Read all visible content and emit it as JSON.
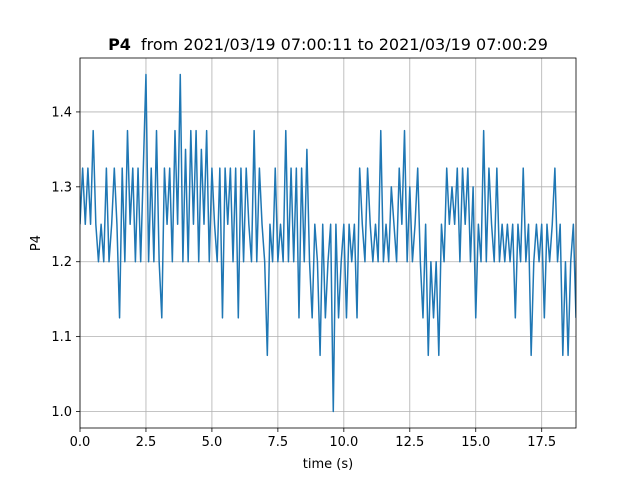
{
  "chart_data": {
    "type": "line",
    "title_variable": "P4",
    "title_range": "from 2021/03/19 07:00:11 to 2021/03/19 07:00:29",
    "xlabel": "time (s)",
    "ylabel": "P4",
    "xlim": [
      0,
      18.8
    ],
    "ylim": [
      0.978,
      1.472
    ],
    "xticks": [
      0.0,
      2.5,
      5.0,
      7.5,
      10.0,
      12.5,
      15.0,
      17.5
    ],
    "xtick_labels": [
      "0.0",
      "2.5",
      "5.0",
      "7.5",
      "10.0",
      "12.5",
      "15.0",
      "17.5"
    ],
    "yticks": [
      1.0,
      1.1,
      1.2,
      1.3,
      1.4
    ],
    "ytick_labels": [
      "1.0",
      "1.1",
      "1.2",
      "1.3",
      "1.4"
    ],
    "grid": true,
    "line_color": "#1f77b4",
    "series": [
      {
        "x": [
          0,
          0.1,
          0.2,
          0.3,
          0.4,
          0.5,
          0.6,
          0.7,
          0.8,
          0.9,
          1.0,
          1.1,
          1.2,
          1.3,
          1.4,
          1.5,
          1.6,
          1.7,
          1.8,
          1.9,
          2.0,
          2.1,
          2.2,
          2.3,
          2.4,
          2.5,
          2.6,
          2.7,
          2.8,
          2.9,
          3.0,
          3.1,
          3.2,
          3.3,
          3.4,
          3.5,
          3.6,
          3.7,
          3.8,
          3.9,
          4.0,
          4.1,
          4.2,
          4.3,
          4.4,
          4.5,
          4.6,
          4.7,
          4.8,
          4.9,
          5.0,
          5.1,
          5.2,
          5.3,
          5.4,
          5.5,
          5.6,
          5.7,
          5.8,
          5.9,
          6.0,
          6.1,
          6.2,
          6.3,
          6.4,
          6.5,
          6.6,
          6.7,
          6.8,
          6.9,
          7.0,
          7.1,
          7.2,
          7.3,
          7.4,
          7.5,
          7.6,
          7.7,
          7.8,
          7.9,
          8.0,
          8.1,
          8.2,
          8.3,
          8.4,
          8.5,
          8.6,
          8.7,
          8.8,
          8.9,
          9.0,
          9.1,
          9.2,
          9.3,
          9.4,
          9.5,
          9.6,
          9.7,
          9.8,
          9.9,
          10.0,
          10.1,
          10.2,
          10.3,
          10.4,
          10.5,
          10.6,
          10.7,
          10.8,
          10.9,
          11.0,
          11.1,
          11.2,
          11.3,
          11.4,
          11.5,
          11.6,
          11.7,
          11.8,
          11.9,
          12.0,
          12.1,
          12.2,
          12.3,
          12.4,
          12.5,
          12.6,
          12.7,
          12.8,
          12.9,
          13.0,
          13.1,
          13.2,
          13.3,
          13.4,
          13.5,
          13.6,
          13.7,
          13.8,
          13.9,
          14.0,
          14.1,
          14.2,
          14.3,
          14.4,
          14.5,
          14.6,
          14.7,
          14.8,
          14.9,
          15.0,
          15.1,
          15.2,
          15.3,
          15.4,
          15.5,
          15.6,
          15.7,
          15.8,
          15.9,
          16.0,
          16.1,
          16.2,
          16.3,
          16.4,
          16.5,
          16.6,
          16.7,
          16.8,
          16.9,
          17.0,
          17.1,
          17.2,
          17.3,
          17.4,
          17.5,
          17.6,
          17.7,
          17.8,
          17.9,
          18.0,
          18.1,
          18.2,
          18.3,
          18.4,
          18.5,
          18.6,
          18.7,
          18.8
        ],
        "y": [
          1.25,
          1.325,
          1.25,
          1.325,
          1.25,
          1.375,
          1.25,
          1.2,
          1.25,
          1.2,
          1.325,
          1.2,
          1.25,
          1.325,
          1.25,
          1.125,
          1.325,
          1.2,
          1.375,
          1.25,
          1.325,
          1.2,
          1.325,
          1.2,
          1.325,
          1.45,
          1.2,
          1.325,
          1.2,
          1.375,
          1.2,
          1.125,
          1.325,
          1.25,
          1.325,
          1.2,
          1.375,
          1.25,
          1.45,
          1.2,
          1.35,
          1.2,
          1.375,
          1.25,
          1.375,
          1.2,
          1.35,
          1.25,
          1.375,
          1.2,
          1.325,
          1.25,
          1.2,
          1.325,
          1.125,
          1.325,
          1.25,
          1.325,
          1.2,
          1.325,
          1.125,
          1.325,
          1.2,
          1.325,
          1.25,
          1.2,
          1.375,
          1.2,
          1.325,
          1.25,
          1.2,
          1.075,
          1.25,
          1.2,
          1.325,
          1.2,
          1.25,
          1.2,
          1.375,
          1.2,
          1.325,
          1.2,
          1.325,
          1.125,
          1.325,
          1.2,
          1.35,
          1.2,
          1.125,
          1.25,
          1.2,
          1.075,
          1.25,
          1.125,
          1.2,
          1.25,
          1.0,
          1.25,
          1.125,
          1.2,
          1.25,
          1.125,
          1.25,
          1.2,
          1.25,
          1.125,
          1.325,
          1.25,
          1.2,
          1.325,
          1.25,
          1.2,
          1.25,
          1.2,
          1.375,
          1.2,
          1.25,
          1.2,
          1.3,
          1.25,
          1.2,
          1.325,
          1.25,
          1.375,
          1.2,
          1.3,
          1.2,
          1.25,
          1.325,
          1.2,
          1.125,
          1.25,
          1.075,
          1.2,
          1.125,
          1.2,
          1.075,
          1.25,
          1.2,
          1.325,
          1.25,
          1.3,
          1.25,
          1.325,
          1.2,
          1.325,
          1.25,
          1.325,
          1.2,
          1.3,
          1.125,
          1.25,
          1.2,
          1.375,
          1.2,
          1.325,
          1.25,
          1.2,
          1.325,
          1.2,
          1.25,
          1.2,
          1.25,
          1.2,
          1.25,
          1.125,
          1.25,
          1.2,
          1.325,
          1.2,
          1.25,
          1.075,
          1.2,
          1.25,
          1.2,
          1.25,
          1.125,
          1.25,
          1.2,
          1.25,
          1.325,
          1.2,
          1.25,
          1.075,
          1.2,
          1.075,
          1.2,
          1.25,
          1.125
        ]
      }
    ]
  }
}
